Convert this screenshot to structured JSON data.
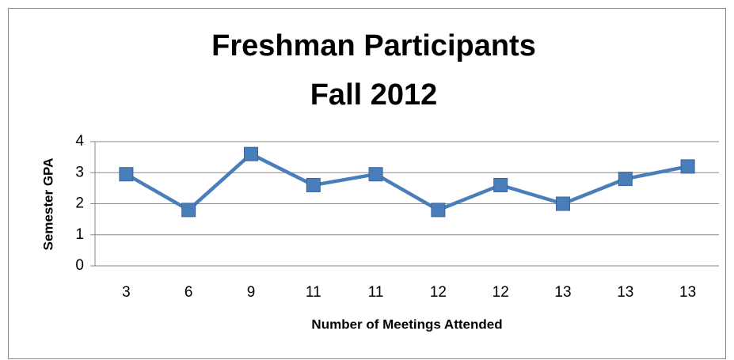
{
  "chart_data": {
    "type": "line",
    "title": [
      "Freshman Participants",
      "Fall 2012"
    ],
    "x_label": "Number of Meetings Attended",
    "y_label": "Semester GPA",
    "categories": [
      "3",
      "6",
      "9",
      "11",
      "11",
      "12",
      "12",
      "13",
      "13",
      "13"
    ],
    "series": [
      {
        "name": "Semester GPA",
        "color": "#4a7ebb",
        "values": [
          2.95,
          1.8,
          3.6,
          2.6,
          2.95,
          1.8,
          2.6,
          2.0,
          2.8,
          3.2
        ]
      }
    ],
    "ylim": [
      0,
      4
    ],
    "yticks": [
      0,
      1,
      2,
      3,
      4
    ],
    "grid": true
  }
}
